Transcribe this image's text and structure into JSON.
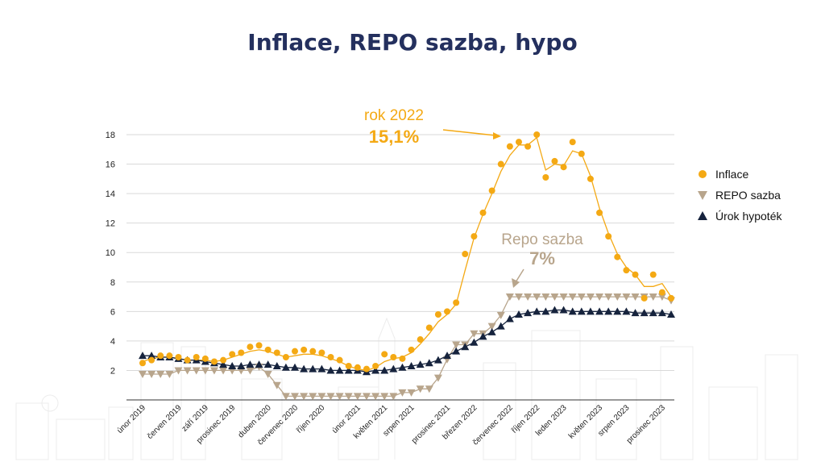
{
  "title": "Inflace, REPO sazba, hypo",
  "colors": {
    "inflace": "#f4a914",
    "repo": "#b8a58c",
    "hypo": "#16233d",
    "title": "#24305e"
  },
  "annotations": {
    "inflation_peak": {
      "line1": "rok 2022",
      "line2": "15,1%"
    },
    "repo": {
      "line1": "Repo sazba",
      "line2": "7%"
    }
  },
  "chart_data": {
    "type": "line",
    "ylim": [
      0,
      18
    ],
    "yticks": [
      2,
      4,
      6,
      8,
      10,
      12,
      14,
      16,
      18
    ],
    "xtick_labels": [
      "únor 2019",
      "červen 2019",
      "září 2019",
      "prosinec 2019",
      "duben 2020",
      "červenec 2020",
      "říjen 2020",
      "únor 2021",
      "květen 2021",
      "srpen 2021",
      "prosinec 2021",
      "březen 2022",
      "červenec 2022",
      "říjen 2022",
      "leden 2023",
      "květen 2023",
      "srpen 2023",
      "prosinec 2023"
    ],
    "xtick_index": [
      0,
      4,
      7,
      10,
      14,
      17,
      20,
      24,
      27,
      30,
      34,
      37,
      41,
      44,
      47,
      51,
      54,
      58
    ],
    "x": [
      "2019-01",
      "2019-02",
      "2019-03",
      "2019-04",
      "2019-05",
      "2019-06",
      "2019-07",
      "2019-08",
      "2019-09",
      "2019-10",
      "2019-11",
      "2019-12",
      "2020-01",
      "2020-02",
      "2020-03",
      "2020-04",
      "2020-05",
      "2020-06",
      "2020-07",
      "2020-08",
      "2020-09",
      "2020-10",
      "2020-11",
      "2020-12",
      "2021-01",
      "2021-02",
      "2021-03",
      "2021-04",
      "2021-05",
      "2021-06",
      "2021-07",
      "2021-08",
      "2021-09",
      "2021-10",
      "2021-11",
      "2021-12",
      "2022-01",
      "2022-02",
      "2022-03",
      "2022-04",
      "2022-05",
      "2022-06",
      "2022-07",
      "2022-08",
      "2022-09",
      "2022-10",
      "2022-11",
      "2022-12",
      "2023-01",
      "2023-02",
      "2023-03",
      "2023-04",
      "2023-05",
      "2023-06",
      "2023-07",
      "2023-08",
      "2023-09",
      "2023-10",
      "2023-11",
      "2023-12"
    ],
    "series": [
      {
        "name": "Inflace",
        "marker": "circle",
        "values": [
          2.5,
          2.7,
          3.0,
          3.0,
          2.9,
          2.7,
          2.9,
          2.8,
          2.6,
          2.7,
          3.1,
          3.2,
          3.6,
          3.7,
          3.4,
          3.2,
          2.9,
          3.3,
          3.4,
          3.3,
          3.2,
          2.9,
          2.7,
          2.3,
          2.2,
          2.1,
          2.3,
          3.1,
          2.9,
          2.8,
          3.4,
          4.1,
          4.9,
          5.8,
          6.0,
          6.6,
          9.9,
          11.1,
          12.7,
          14.2,
          16.0,
          17.2,
          17.5,
          17.2,
          18.0,
          15.1,
          16.2,
          15.8,
          17.5,
          16.7,
          15.0,
          12.7,
          11.1,
          9.7,
          8.8,
          8.5,
          6.9,
          8.5,
          7.3,
          6.9
        ]
      },
      {
        "name": "REPO sazba",
        "marker": "triangle-down",
        "values": [
          1.75,
          1.75,
          1.75,
          1.75,
          2.0,
          2.0,
          2.0,
          2.0,
          2.0,
          2.0,
          2.0,
          2.0,
          2.0,
          2.25,
          1.75,
          1.0,
          0.25,
          0.25,
          0.25,
          0.25,
          0.25,
          0.25,
          0.25,
          0.25,
          0.25,
          0.25,
          0.25,
          0.25,
          0.25,
          0.5,
          0.5,
          0.75,
          0.75,
          1.5,
          2.75,
          3.75,
          3.75,
          4.5,
          4.5,
          5.0,
          5.75,
          7.0,
          7.0,
          7.0,
          7.0,
          7.0,
          7.0,
          7.0,
          7.0,
          7.0,
          7.0,
          7.0,
          7.0,
          7.0,
          7.0,
          7.0,
          7.0,
          7.0,
          7.0,
          6.75
        ]
      },
      {
        "name": "Úrok hypoték",
        "marker": "triangle-up",
        "values": [
          3.0,
          3.0,
          2.9,
          2.9,
          2.8,
          2.7,
          2.7,
          2.6,
          2.5,
          2.4,
          2.3,
          2.3,
          2.4,
          2.4,
          2.4,
          2.3,
          2.2,
          2.2,
          2.1,
          2.1,
          2.1,
          2.0,
          2.0,
          2.0,
          2.0,
          1.9,
          2.0,
          2.0,
          2.1,
          2.2,
          2.3,
          2.4,
          2.5,
          2.7,
          3.0,
          3.3,
          3.6,
          3.9,
          4.3,
          4.6,
          5.0,
          5.5,
          5.8,
          5.9,
          6.0,
          6.0,
          6.1,
          6.1,
          6.0,
          6.0,
          6.0,
          6.0,
          6.0,
          6.0,
          6.0,
          5.9,
          5.9,
          5.9,
          5.9,
          5.8
        ]
      }
    ],
    "trend_line": {
      "color": "#f4a914",
      "values": [
        2.6,
        2.8,
        2.9,
        2.9,
        2.8,
        2.7,
        2.7,
        2.7,
        2.6,
        2.7,
        2.9,
        3.1,
        3.3,
        3.4,
        3.3,
        3.1,
        2.9,
        3.0,
        3.1,
        3.1,
        3.0,
        2.8,
        2.6,
        2.3,
        2.1,
        2.0,
        2.2,
        2.6,
        2.8,
        2.9,
        3.2,
        3.8,
        4.5,
        5.3,
        5.8,
        6.5,
        8.8,
        11.0,
        12.6,
        14.0,
        15.5,
        16.6,
        17.3,
        17.3,
        17.8,
        15.6,
        16.0,
        15.9,
        16.9,
        16.7,
        15.2,
        13.0,
        11.3,
        9.9,
        9.0,
        8.5,
        7.7,
        7.7,
        7.9,
        7.0
      ]
    },
    "grid": true,
    "legend_position": "right"
  }
}
